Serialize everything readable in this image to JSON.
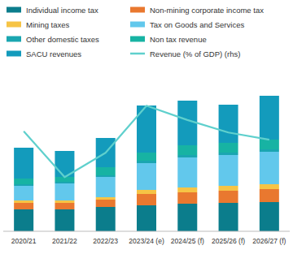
{
  "chart_data": {
    "type": "bar",
    "stacked": true,
    "tick_labels": "x",
    "categories": [
      "2020/21",
      "2021/22",
      "2022/23",
      "2023/24 (e)",
      "2024/25 (f)",
      "2025/26 (f)",
      "2026/27 (f)"
    ],
    "ylim": [
      0,
      220
    ],
    "y2lim": [
      10,
      40
    ],
    "series": [
      {
        "name": "Individual income tax",
        "color": "#0b7d8c",
        "values": [
          27,
          27,
          30,
          32,
          34,
          35,
          36
        ]
      },
      {
        "name": "Non-mining corporate income tax",
        "color": "#e9782f",
        "values": [
          8,
          8,
          9,
          14,
          14,
          15,
          16
        ]
      },
      {
        "name": "Mining taxes",
        "color": "#f6c445",
        "values": [
          3,
          3,
          3,
          5,
          6,
          6,
          6
        ]
      },
      {
        "name": "Tax on Goods and Services",
        "color": "#62c8ec",
        "values": [
          18,
          21,
          25,
          33,
          37,
          38,
          40
        ]
      },
      {
        "name": "Other domestic taxes",
        "color": "#1aa6b0",
        "values": [
          2,
          2,
          2,
          3,
          3,
          3,
          3
        ]
      },
      {
        "name": "Non tax revenue",
        "color": "#17b3a3",
        "values": [
          7,
          6,
          10,
          10,
          12,
          12,
          12
        ]
      },
      {
        "name": "SACU revenues",
        "color": "#139bbc",
        "values": [
          38,
          32,
          36,
          58,
          55,
          47,
          54
        ]
      },
      {
        "name": "Revenue (% of GDP) (rhs)",
        "color": "#5fd0cd",
        "type": "line",
        "axis": "y2",
        "values": [
          26.8,
          19.1,
          23.2,
          31.1,
          28.7,
          26.6,
          25.4
        ]
      }
    ]
  }
}
